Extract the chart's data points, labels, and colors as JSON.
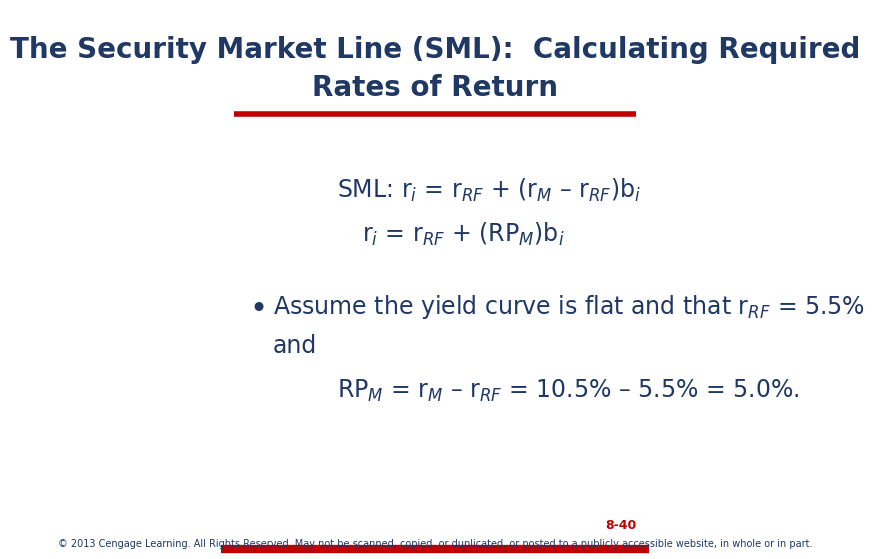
{
  "title_line1": "The Security Market Line (SML):  Calculating Required",
  "title_line2": "Rates of Return",
  "title_color": "#1F3864",
  "title_fontsize": 20,
  "bg_color": "#FFFFFF",
  "red_line_color": "#C00000",
  "sml_line1": "SML: r$_i$ = r$_{RF}$ + (r$_M$ – r$_{RF}$)b$_i$",
  "sml_line2": "r$_i$ = r$_{RF}$ + (RP$_M$)b$_i$",
  "body_color": "#1F3864",
  "body_fontsize": 17,
  "bullet_text_line1": "Assume the yield curve is flat and that r$_{RF}$ = 5.5%",
  "bullet_text_line2": "and",
  "rpm_line": "RP$_M$ = r$_M$ – r$_{RF}$ = 10.5% – 5.5% = 5.0%.",
  "page_num": "8-40",
  "page_num_color": "#C00000",
  "footer_text": "© 2013 Cengage Learning. All Rights Reserved. May not be scanned, copied, or duplicated, or posted to a publicly accessible website, in whole or in part.",
  "footer_color": "#1F3864",
  "footer_fontsize": 7
}
